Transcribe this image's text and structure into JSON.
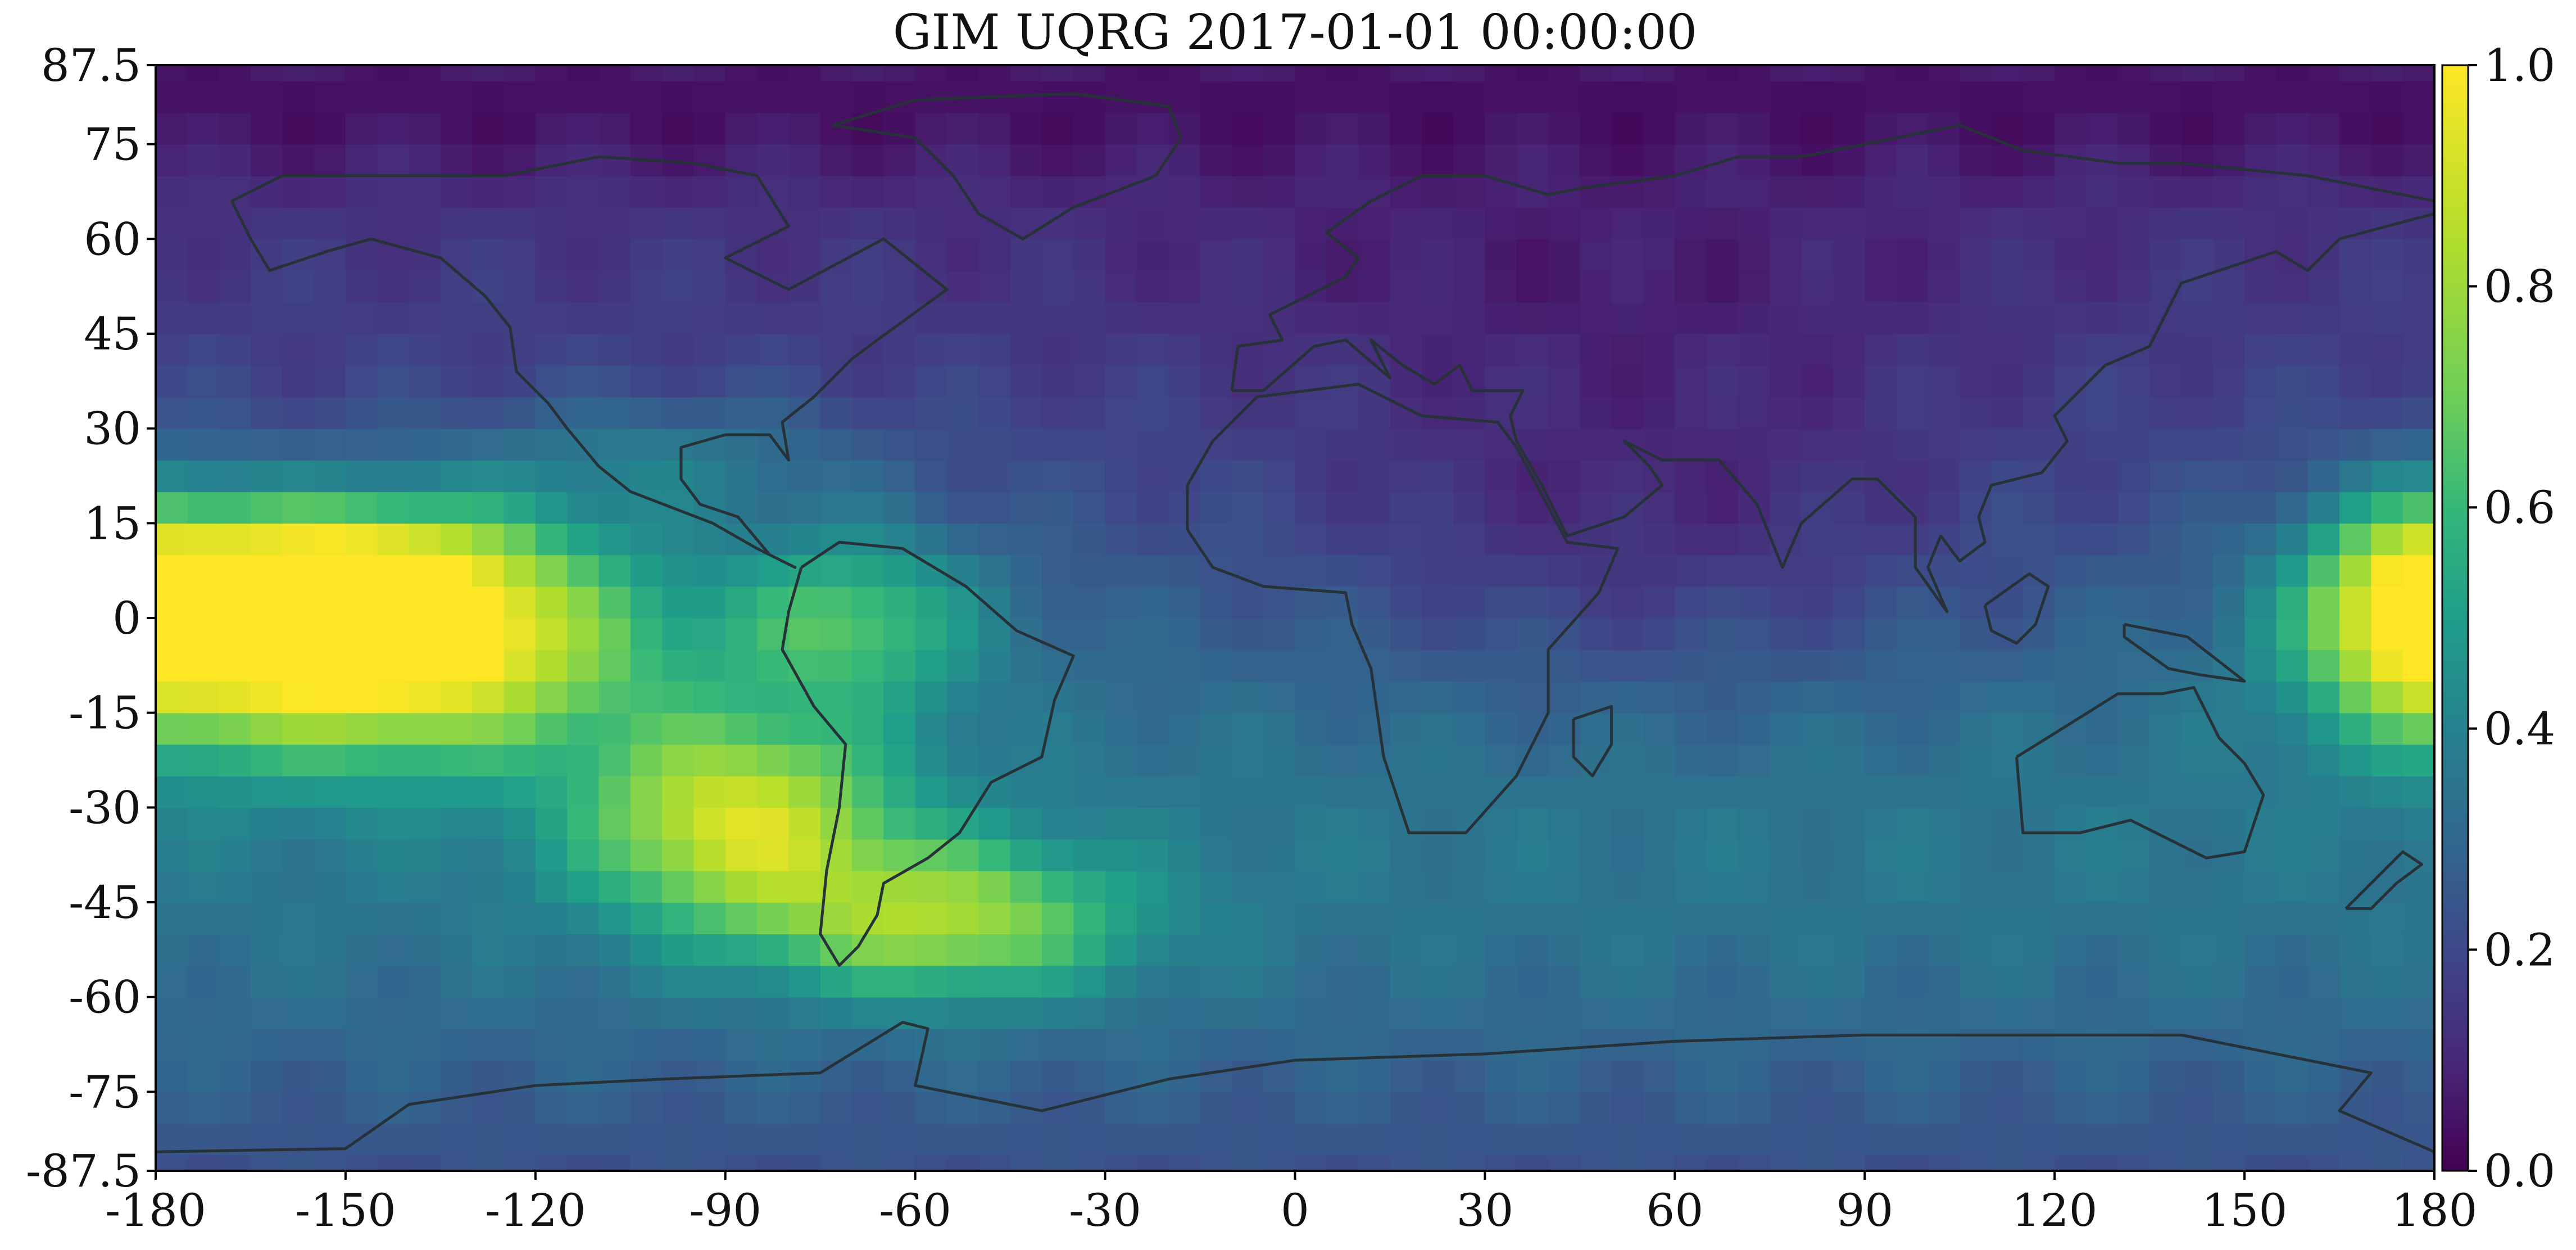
{
  "title": "GIM UQRG 2017-01-01 00:00:00",
  "chart_data": {
    "type": "heatmap",
    "title": "GIM UQRG 2017-01-01 00:00:00",
    "xlabel": "",
    "ylabel": "",
    "xlim": [
      -180,
      180
    ],
    "ylim": [
      -87.5,
      87.5
    ],
    "x_ticks": [
      "-180",
      "-150",
      "-120",
      "-90",
      "-60",
      "-30",
      "0",
      "30",
      "60",
      "90",
      "120",
      "150",
      "180"
    ],
    "y_ticks": [
      "87.5",
      "75",
      "60",
      "45",
      "30",
      "15",
      "0",
      "-15",
      "-30",
      "-45",
      "-60",
      "-75",
      "-87.5"
    ],
    "colorbar": {
      "colormap": "viridis",
      "range": [
        0.0,
        1.0
      ],
      "ticks": [
        "0.0",
        "0.2",
        "0.4",
        "0.6",
        "0.8",
        "1.0"
      ]
    },
    "features": [
      {
        "name": "equatorial crest west Pacific",
        "lon": -140,
        "lat": -5,
        "value": 1.0
      },
      {
        "name": "crest over South America",
        "lon": -80,
        "lat": -25,
        "value": 0.8
      },
      {
        "name": "crest east of date line",
        "lon": 175,
        "lat": 0,
        "value": 0.75
      },
      {
        "name": "polar cap north",
        "lon": 0,
        "lat": 80,
        "value": 0.05
      },
      {
        "name": "minimum over Africa/Indian Ocean",
        "lon": 60,
        "lat": 20,
        "value": 0.05
      }
    ],
    "colors": [
      "#440154",
      "#482878",
      "#3e4989",
      "#31688e",
      "#26828e",
      "#1f9e89",
      "#35b779",
      "#6ece58",
      "#b5de2b",
      "#fde725"
    ],
    "overlay": "coastlines and country borders"
  }
}
